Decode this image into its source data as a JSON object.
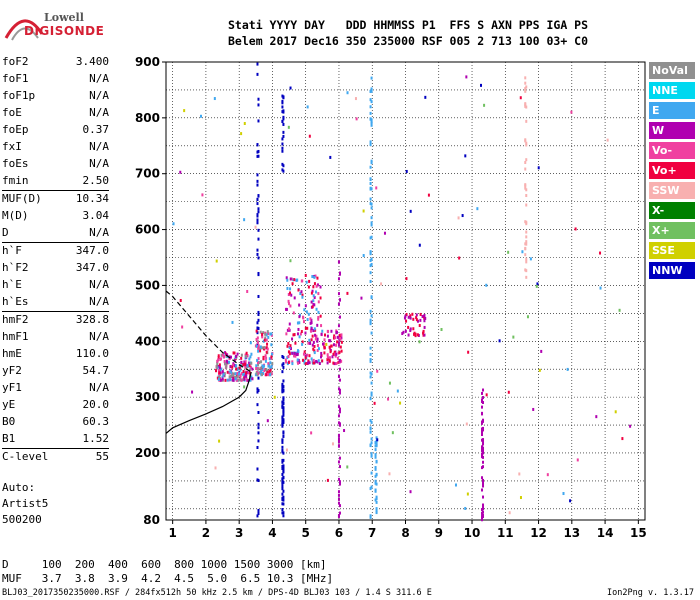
{
  "logo": {
    "line1": "Lowell",
    "line2": "DIGISONDE"
  },
  "header": {
    "line1": "Stati YYYY DAY   DDD HHMMSS P1  FFS S AXN PPS IGA PS",
    "line2": "Belem 2017 Dec16 350 235000 RSF 005 2 713 100 03+ C0"
  },
  "params": [
    {
      "label": "foF2",
      "value": "3.400"
    },
    {
      "label": "foF1",
      "value": "N/A"
    },
    {
      "label": "foF1p",
      "value": "N/A"
    },
    {
      "label": "foE",
      "value": "N/A"
    },
    {
      "label": "foEp",
      "value": "0.37"
    },
    {
      "label": "fxI",
      "value": "N/A"
    },
    {
      "label": "foEs",
      "value": "N/A"
    },
    {
      "label": "fmin",
      "value": "2.50"
    },
    {
      "label": "MUF(D)",
      "value": "10.34"
    },
    {
      "label": "M(D)",
      "value": "3.04"
    },
    {
      "label": "D",
      "value": "N/A"
    },
    {
      "label": "h`F",
      "value": "347.0"
    },
    {
      "label": "h`F2",
      "value": "347.0"
    },
    {
      "label": "h`E",
      "value": "N/A"
    },
    {
      "label": "h`Es",
      "value": "N/A"
    },
    {
      "label": "hmF2",
      "value": "328.8"
    },
    {
      "label": "hmF1",
      "value": "N/A"
    },
    {
      "label": "hmE",
      "value": "110.0"
    },
    {
      "label": "yF2",
      "value": "54.7"
    },
    {
      "label": "yF1",
      "value": "N/A"
    },
    {
      "label": "yE",
      "value": "20.0"
    },
    {
      "label": "B0",
      "value": "60.3"
    },
    {
      "label": "B1",
      "value": "1.52"
    },
    {
      "label": "C-level",
      "value": "55"
    }
  ],
  "auto": {
    "line1": "Auto:",
    "line2": "Artist5",
    "line3": "500200"
  },
  "bottom": {
    "d_line": "D     100  200  400  600  800 1000 1500 3000 [km]",
    "muf_line": "MUF   3.7  3.8  3.9  4.2  4.5  5.0  6.5 10.3 [MHz]"
  },
  "footer": "BLJ03_2017350235000.RSF / 284fx512h 50 kHz 2.5 km / DPS-4D BLJ03 103 / 1.4 S 311.6 E",
  "version": "Ion2Png v. 1.3.17",
  "legend": [
    {
      "label": "NoVal",
      "color": "#909090"
    },
    {
      "label": "NNE",
      "color": "#00d8f0"
    },
    {
      "label": "E",
      "color": "#40a8f0"
    },
    {
      "label": "W",
      "color": "#b000b0"
    },
    {
      "label": "Vo-",
      "color": "#f040a0"
    },
    {
      "label": "Vo+",
      "color": "#f00040"
    },
    {
      "label": "SSW",
      "color": "#f8b0b0"
    },
    {
      "label": "X-",
      "color": "#008000"
    },
    {
      "label": "X+",
      "color": "#70c060"
    },
    {
      "label": "SSE",
      "color": "#d0d000"
    },
    {
      "label": "NNW",
      "color": "#0000c0"
    }
  ],
  "chart_data": {
    "type": "scatter",
    "x_ticks": [
      "1",
      "2",
      "3",
      "4",
      "5",
      "6",
      "7",
      "8",
      "9",
      "10",
      "11",
      "12",
      "13",
      "14",
      "15"
    ],
    "y_ticks": [
      "200",
      "300",
      "400",
      "500",
      "600",
      "700",
      "800",
      "900"
    ],
    "y_bottom_label": "80",
    "xlim": [
      0.8,
      15.2
    ],
    "ylim": [
      80,
      900
    ],
    "grid": true,
    "profile_solid": [
      [
        0.8,
        235
      ],
      [
        1.0,
        245
      ],
      [
        1.5,
        258
      ],
      [
        2.0,
        270
      ],
      [
        2.5,
        283
      ],
      [
        3.0,
        300
      ],
      [
        3.2,
        312
      ],
      [
        3.3,
        330
      ],
      [
        3.36,
        345
      ]
    ],
    "profile_dashed": [
      [
        0.8,
        490
      ],
      [
        1.0,
        480
      ],
      [
        1.5,
        445
      ],
      [
        2.0,
        410
      ],
      [
        2.5,
        380
      ],
      [
        3.0,
        358
      ],
      [
        3.36,
        345
      ]
    ],
    "clusters": [
      {
        "x": [
          2.3,
          3.4
        ],
        "y": [
          330,
          380
        ],
        "n": 200,
        "colors": [
          "#f040a0",
          "#f00040",
          "#40a8f0",
          "#b000b0",
          "#909090"
        ]
      },
      {
        "x": [
          3.5,
          4.0
        ],
        "y": [
          340,
          420
        ],
        "n": 120,
        "colors": [
          "#40a8f0",
          "#f040a0",
          "#f00040",
          "#909090"
        ]
      },
      {
        "x": [
          4.4,
          5.5
        ],
        "y": [
          360,
          520
        ],
        "n": 200,
        "colors": [
          "#40a8f0",
          "#f040a0",
          "#f00040",
          "#b000b0"
        ]
      },
      {
        "x": [
          5.5,
          6.1
        ],
        "y": [
          360,
          420
        ],
        "n": 70,
        "colors": [
          "#f00040",
          "#f040a0",
          "#b000b0"
        ]
      },
      {
        "x": [
          7.9,
          8.6
        ],
        "y": [
          410,
          450
        ],
        "n": 40,
        "colors": [
          "#f00040",
          "#b000b0"
        ]
      }
    ],
    "columns": [
      {
        "x": 3.55,
        "y": [
          80,
          900
        ],
        "color": "#0000c0",
        "n": 60
      },
      {
        "x": 4.3,
        "y": [
          80,
          380
        ],
        "color": "#0000c0",
        "n": 90
      },
      {
        "x": 4.3,
        "y": [
          700,
          840
        ],
        "color": "#0000c0",
        "n": 25
      },
      {
        "x": 6.0,
        "y": [
          80,
          560
        ],
        "color": "#b000b0",
        "n": 50
      },
      {
        "x": 6.95,
        "y": [
          80,
          880
        ],
        "color": "#40a8f0",
        "n": 80
      },
      {
        "x": 7.1,
        "y": [
          80,
          230
        ],
        "color": "#40a8f0",
        "n": 30
      },
      {
        "x": 10.3,
        "y": [
          80,
          320
        ],
        "color": "#b000b0",
        "n": 60
      },
      {
        "x": 11.6,
        "y": [
          500,
          880
        ],
        "color": "#f8b0b0",
        "n": 40
      }
    ]
  }
}
